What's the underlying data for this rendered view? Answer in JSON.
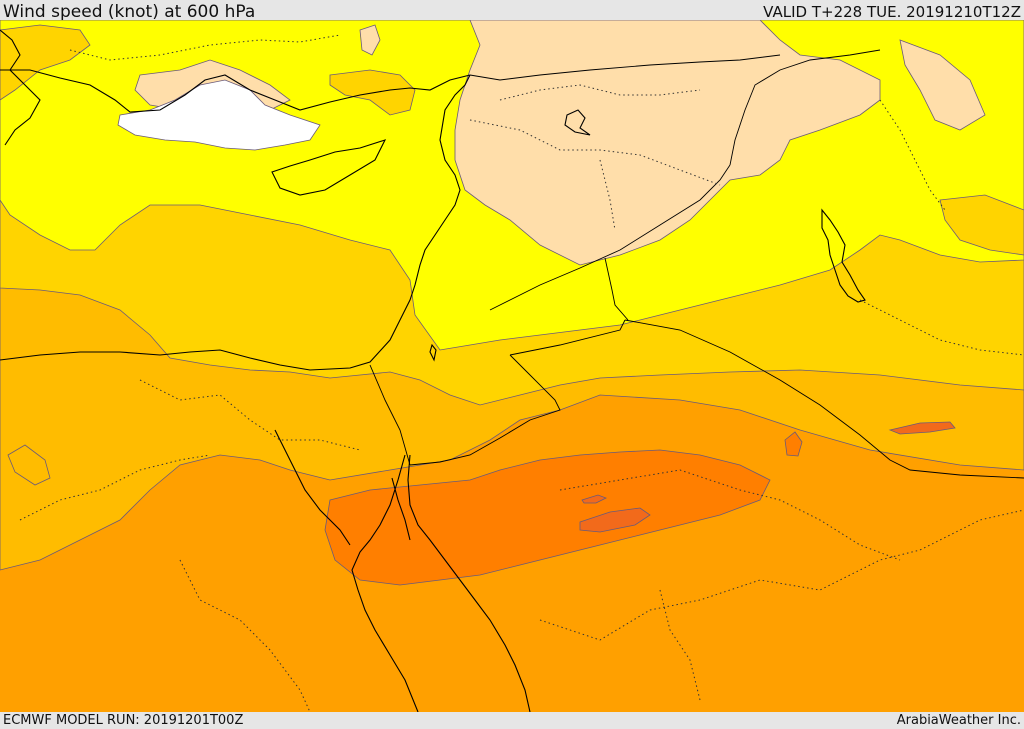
{
  "header": {
    "title": "Wind speed (knot) at 600 hPa",
    "valid": "VALID T+228 TUE. 20191210T12Z"
  },
  "footer": {
    "model_run": "ECMWF MODEL RUN: 20191201T00Z",
    "credit": "ArabiaWeather Inc."
  },
  "colors": {
    "white_band": "#ffffff",
    "tan_band": "#ffdeaa",
    "yellow_band": "#ffff00",
    "gold_band": "#ffd400",
    "amber_band": "#ffbc00",
    "orange_band": "#ffa000",
    "dark_orange_band": "#ff7f00",
    "red_orange_band": "#f26a1b"
  }
}
